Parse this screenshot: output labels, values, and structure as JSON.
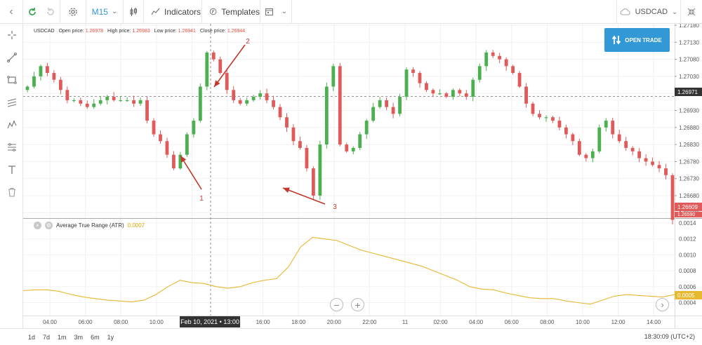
{
  "toolbar": {
    "timeframe": "M15",
    "indicators_label": "Indicators",
    "templates_label": "Templates",
    "symbol": "USDCAD"
  },
  "legend": {
    "symbol": "USDCAD",
    "open_label": "Open price:",
    "open_value": "1.26978",
    "high_label": "High price:",
    "high_value": "1.26983",
    "low_label": "Low price:",
    "low_value": "1.26941",
    "close_label": "Close price:",
    "close_value": "1.26944"
  },
  "open_trade_label": "OPEN TRADE",
  "price_axis": {
    "ticks": [
      "1.27180",
      "1.27130",
      "1.27080",
      "1.27030",
      "1.26980",
      "1.26930",
      "1.26880",
      "1.26830",
      "1.26780",
      "1.26730",
      "1.26680",
      "1.26630"
    ],
    "current_price": "1.26971",
    "last_price": "1.26609",
    "partial_label": "1.26590"
  },
  "atr": {
    "name": "Average True Range (ATR)",
    "value": "0.0007",
    "ticks": [
      "0.0014",
      "0.0012",
      "0.0010",
      "0.0008",
      "0.0006",
      "0.0004"
    ],
    "current": "0.0005"
  },
  "time_axis": {
    "labels": [
      "04:00",
      "06:00",
      "08:00",
      "10:00",
      "12:00",
      "14:00",
      "16:00",
      "18:00",
      "20:00",
      "22:00",
      "11",
      "02:00",
      "04:00",
      "06:00",
      "08:00",
      "10:00",
      "12:00",
      "14:00"
    ],
    "cursor_label": "Feb 10, 2021 • 13:00"
  },
  "annotations": [
    "1",
    "2",
    "3"
  ],
  "periods": [
    "1d",
    "7d",
    "1m",
    "3m",
    "6m",
    "1y"
  ],
  "clock": "18:30:09 (UTC+2)",
  "colors": {
    "bull": "#4caf50",
    "bear": "#e05a5a",
    "atr_line": "#e8b830",
    "accent": "#3399d6",
    "annotation": "#c0392b"
  },
  "chart_data": {
    "type": "candlestick",
    "timeframe": "M15",
    "symbol": "USDCAD",
    "ylim": [
      1.26609,
      1.2718
    ],
    "candles_close_approx": [
      1.27,
      1.2703,
      1.2706,
      1.2704,
      1.2702,
      1.2699,
      1.2696,
      1.2696,
      1.2695,
      1.2694,
      1.2695,
      1.2696,
      1.2697,
      1.2696,
      1.2696,
      1.2696,
      1.2695,
      1.2696,
      1.269,
      1.2686,
      1.2684,
      1.268,
      1.2676,
      1.268,
      1.2686,
      1.269,
      1.27,
      1.271,
      1.2708,
      1.2704,
      1.2699,
      1.2696,
      1.2695,
      1.2696,
      1.2697,
      1.2698,
      1.2696,
      1.2694,
      1.2691,
      1.2688,
      1.2684,
      1.2682,
      1.2676,
      1.2668,
      1.2683,
      1.27,
      1.2706,
      1.2683,
      1.2681,
      1.2682,
      1.2686,
      1.269,
      1.2694,
      1.2696,
      1.2694,
      1.2692,
      1.2697,
      1.2705,
      1.2704,
      1.2701,
      1.2699,
      1.2698,
      1.2698,
      1.2697,
      1.2699,
      1.2698,
      1.2697,
      1.2702,
      1.2706,
      1.271,
      1.2709,
      1.2708,
      1.2706,
      1.2704,
      1.27,
      1.2695,
      1.2692,
      1.2691,
      1.2691,
      1.269,
      1.2688,
      1.2686,
      1.2684,
      1.268,
      1.2679,
      1.2681,
      1.2688,
      1.269,
      1.2686,
      1.2684,
      1.2682,
      1.2681,
      1.2679,
      1.2678,
      1.2677,
      1.2676,
      1.2674,
      1.26609
    ],
    "atr_series": {
      "name": "Average True Range (ATR)",
      "ylim": [
        0.0003,
        0.0014
      ],
      "values_approx": [
        0.00055,
        0.00056,
        0.00056,
        0.00054,
        0.0005,
        0.00047,
        0.00045,
        0.00043,
        0.00042,
        0.00041,
        0.00043,
        0.0005,
        0.0006,
        0.00068,
        0.00065,
        0.00064,
        0.0006,
        0.00058,
        0.0006,
        0.00065,
        0.00068,
        0.0007,
        0.00085,
        0.0011,
        0.00122,
        0.0012,
        0.00118,
        0.00112,
        0.00106,
        0.00102,
        0.00098,
        0.00094,
        0.0009,
        0.00086,
        0.0008,
        0.00074,
        0.00068,
        0.0006,
        0.00057,
        0.00056,
        0.00052,
        0.00049,
        0.00046,
        0.00045,
        0.00045,
        0.00042,
        0.0004,
        0.00038,
        0.00043,
        0.00048,
        0.0005,
        0.00049,
        0.00048,
        0.00047,
        0.0005
      ]
    }
  }
}
